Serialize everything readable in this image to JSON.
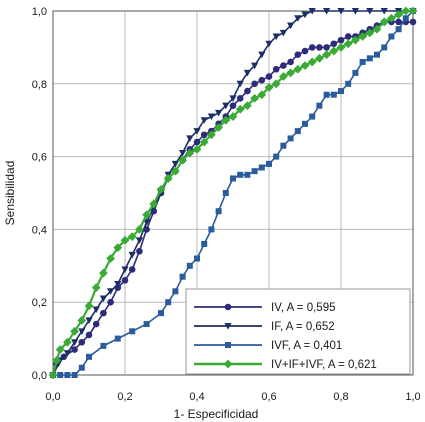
{
  "chart_data": {
    "type": "line",
    "title": "",
    "xlabel": "1- Especificidad",
    "ylabel": "Sensibilidad",
    "xlim": [
      0,
      1
    ],
    "ylim": [
      0,
      1
    ],
    "xticks": [
      "0,0",
      "0,2",
      "0,4",
      "0,6",
      "0,8",
      "1,0"
    ],
    "yticks": [
      "0,0",
      "0,2",
      "0,4",
      "0,6",
      "0,8",
      "1,0"
    ],
    "grid": true,
    "legend_position": "bottom-right",
    "series": [
      {
        "name": "IV, A = 0,595",
        "color": "#2e2b7a",
        "marker": "circle",
        "x": [
          0.0,
          0.01,
          0.03,
          0.06,
          0.08,
          0.1,
          0.12,
          0.14,
          0.16,
          0.18,
          0.2,
          0.22,
          0.24,
          0.26,
          0.28,
          0.3,
          0.32,
          0.34,
          0.36,
          0.38,
          0.4,
          0.42,
          0.44,
          0.46,
          0.48,
          0.5,
          0.52,
          0.54,
          0.56,
          0.58,
          0.6,
          0.62,
          0.64,
          0.66,
          0.68,
          0.7,
          0.72,
          0.74,
          0.76,
          0.78,
          0.8,
          0.82,
          0.84,
          0.86,
          0.88,
          0.9,
          0.92,
          0.94,
          0.96,
          0.98,
          1.0
        ],
        "y": [
          0.0,
          0.03,
          0.05,
          0.07,
          0.09,
          0.11,
          0.14,
          0.17,
          0.2,
          0.24,
          0.26,
          0.29,
          0.34,
          0.4,
          0.45,
          0.5,
          0.54,
          0.56,
          0.59,
          0.62,
          0.64,
          0.66,
          0.67,
          0.69,
          0.71,
          0.74,
          0.76,
          0.78,
          0.8,
          0.81,
          0.82,
          0.84,
          0.85,
          0.86,
          0.88,
          0.89,
          0.9,
          0.9,
          0.9,
          0.91,
          0.92,
          0.93,
          0.93,
          0.94,
          0.95,
          0.96,
          0.97,
          0.97,
          0.97,
          0.97,
          0.97
        ]
      },
      {
        "name": "IF, A = 0,652",
        "color": "#1c2e66",
        "marker": "triangle-down",
        "x": [
          0.0,
          0.02,
          0.04,
          0.06,
          0.08,
          0.1,
          0.12,
          0.14,
          0.16,
          0.18,
          0.2,
          0.22,
          0.24,
          0.26,
          0.28,
          0.3,
          0.32,
          0.34,
          0.36,
          0.38,
          0.4,
          0.42,
          0.44,
          0.46,
          0.48,
          0.5,
          0.52,
          0.54,
          0.56,
          0.58,
          0.6,
          0.62,
          0.64,
          0.66,
          0.68,
          0.7,
          0.72,
          0.76,
          0.8,
          0.84,
          0.88,
          0.92,
          0.96,
          1.0
        ],
        "y": [
          0.0,
          0.04,
          0.06,
          0.09,
          0.12,
          0.15,
          0.18,
          0.21,
          0.23,
          0.25,
          0.29,
          0.33,
          0.37,
          0.42,
          0.46,
          0.5,
          0.55,
          0.58,
          0.61,
          0.65,
          0.67,
          0.7,
          0.71,
          0.72,
          0.74,
          0.76,
          0.8,
          0.83,
          0.85,
          0.88,
          0.91,
          0.93,
          0.94,
          0.96,
          0.98,
          0.99,
          1.0,
          1.0,
          1.0,
          1.0,
          1.0,
          1.0,
          1.0,
          1.0
        ]
      },
      {
        "name": "IVF, A = 0,401",
        "color": "#2a5c9c",
        "marker": "square",
        "x": [
          0.0,
          0.02,
          0.04,
          0.06,
          0.08,
          0.1,
          0.14,
          0.18,
          0.22,
          0.26,
          0.3,
          0.32,
          0.34,
          0.36,
          0.38,
          0.4,
          0.42,
          0.44,
          0.46,
          0.48,
          0.5,
          0.52,
          0.54,
          0.56,
          0.58,
          0.6,
          0.62,
          0.64,
          0.66,
          0.68,
          0.7,
          0.72,
          0.74,
          0.76,
          0.78,
          0.8,
          0.82,
          0.84,
          0.86,
          0.88,
          0.9,
          0.92,
          0.94,
          0.96,
          0.98,
          1.0
        ],
        "y": [
          0.0,
          0.0,
          0.0,
          0.0,
          0.02,
          0.05,
          0.08,
          0.1,
          0.12,
          0.14,
          0.17,
          0.2,
          0.23,
          0.27,
          0.3,
          0.32,
          0.36,
          0.4,
          0.45,
          0.5,
          0.54,
          0.55,
          0.55,
          0.56,
          0.57,
          0.58,
          0.6,
          0.63,
          0.65,
          0.67,
          0.69,
          0.71,
          0.74,
          0.77,
          0.77,
          0.78,
          0.8,
          0.83,
          0.86,
          0.87,
          0.88,
          0.9,
          0.93,
          0.95,
          0.98,
          1.0
        ]
      },
      {
        "name": "IV+IF+IVF, A = 0,621",
        "color": "#3aaa35",
        "marker": "diamond",
        "x": [
          0.0,
          0.01,
          0.02,
          0.04,
          0.06,
          0.08,
          0.1,
          0.12,
          0.14,
          0.16,
          0.18,
          0.2,
          0.22,
          0.24,
          0.26,
          0.28,
          0.3,
          0.32,
          0.34,
          0.36,
          0.38,
          0.4,
          0.42,
          0.44,
          0.46,
          0.48,
          0.5,
          0.52,
          0.54,
          0.56,
          0.58,
          0.6,
          0.62,
          0.64,
          0.66,
          0.68,
          0.7,
          0.72,
          0.74,
          0.76,
          0.78,
          0.8,
          0.82,
          0.84,
          0.86,
          0.88,
          0.9,
          0.92,
          0.94,
          0.96,
          0.98,
          1.0
        ],
        "y": [
          0.0,
          0.04,
          0.07,
          0.09,
          0.12,
          0.15,
          0.19,
          0.24,
          0.28,
          0.32,
          0.35,
          0.37,
          0.38,
          0.4,
          0.44,
          0.47,
          0.51,
          0.54,
          0.56,
          0.59,
          0.61,
          0.62,
          0.64,
          0.66,
          0.68,
          0.7,
          0.71,
          0.73,
          0.74,
          0.76,
          0.77,
          0.79,
          0.8,
          0.82,
          0.83,
          0.84,
          0.85,
          0.86,
          0.87,
          0.88,
          0.89,
          0.9,
          0.91,
          0.92,
          0.93,
          0.94,
          0.95,
          0.97,
          0.98,
          0.99,
          1.0,
          1.0
        ]
      }
    ]
  }
}
